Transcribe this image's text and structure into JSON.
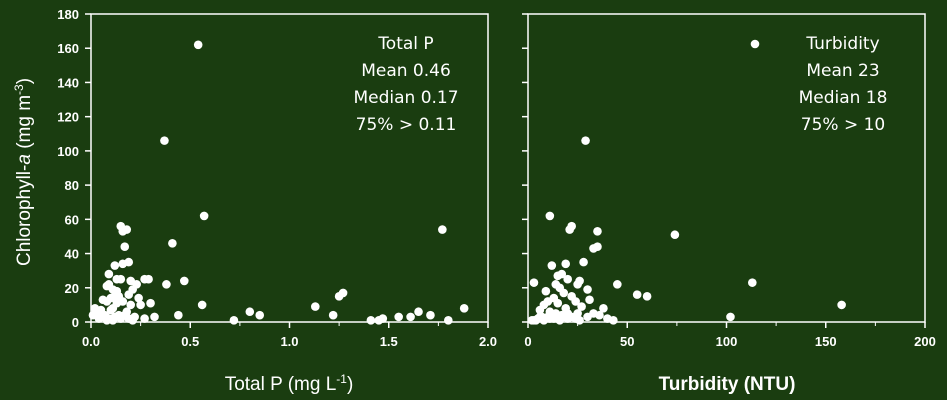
{
  "colors": {
    "background": "#1a3d10",
    "points": "#ffffff",
    "axes": "#ffffff"
  },
  "y_label": {
    "main": "Chlorophyll-",
    "italic": "a",
    "unit": " (mg m",
    "sup": "-3",
    "close": ")"
  },
  "chart_data": [
    {
      "type": "scatter",
      "xlabel": {
        "main": "Total P (mg L",
        "sup": "-1",
        "close": ")"
      },
      "xlim": [
        0,
        2.0
      ],
      "ylim": [
        0,
        180
      ],
      "xticks": [
        "0.0",
        "0.5",
        "1.0",
        "1.5",
        "2.0"
      ],
      "yticks": [
        "0",
        "20",
        "40",
        "60",
        "80",
        "100",
        "120",
        "140",
        "160",
        "180"
      ],
      "grid": false,
      "annotation": [
        "Total P",
        "Mean 0.46",
        "Median 0.17",
        "75% > 0.11"
      ],
      "x": [
        0.54,
        0.37,
        0.57,
        1.77,
        0.41,
        0.15,
        0.16,
        0.18,
        0.17,
        0.19,
        0.16,
        0.12,
        0.09,
        0.13,
        0.15,
        0.2,
        0.27,
        0.29,
        0.23,
        0.09,
        0.47,
        0.08,
        0.38,
        0.11,
        0.21,
        0.13,
        0.19,
        0.12,
        0.1,
        0.14,
        0.24,
        0.06,
        0.16,
        0.08,
        0.3,
        0.13,
        0.25,
        0.2,
        0.02,
        0.11,
        0.05,
        0.1,
        0.18,
        0.03,
        0.01,
        0.07,
        0.14,
        0.17,
        0.22,
        0.06,
        0.12,
        0.04,
        0.09,
        0.27,
        0.15,
        0.21,
        0.11,
        0.32,
        0.19,
        0.08,
        0.44,
        0.56,
        0.8,
        0.72,
        0.85,
        1.13,
        1.27,
        1.25,
        1.22,
        1.41,
        1.45,
        1.47,
        1.55,
        1.65,
        1.61,
        1.71,
        1.8,
        1.88
      ],
      "y": [
        162,
        106,
        62,
        54,
        46,
        56,
        53,
        54,
        44,
        35,
        34,
        33,
        28,
        25,
        25,
        24,
        25,
        25,
        22,
        22,
        24,
        21,
        22,
        19,
        19,
        18,
        16,
        15,
        14,
        15,
        14,
        13,
        12,
        12,
        11,
        11,
        10,
        10,
        8,
        8,
        7,
        7,
        6,
        5,
        4,
        4,
        4,
        4,
        3,
        3,
        3,
        2,
        2,
        2,
        2,
        1,
        1,
        3,
        2,
        1,
        4,
        10,
        6,
        1,
        4,
        9,
        17,
        15,
        4,
        1,
        1,
        2,
        3,
        6,
        3,
        4,
        1,
        8
      ]
    },
    {
      "type": "scatter",
      "xlabel": {
        "main": "Turbidity (NTU)"
      },
      "xlim": [
        0,
        200
      ],
      "ylim": [
        0,
        180
      ],
      "xticks": [
        "0",
        "50",
        "100",
        "150",
        "200"
      ],
      "yticks": [],
      "grid": false,
      "legend": {
        "label": "Turbidity",
        "position": "top-right"
      },
      "annotation": [
        "Turbidity",
        "Mean 23",
        "Median 18",
        "75% > 10"
      ],
      "x": [
        29,
        74,
        113,
        158,
        102,
        35,
        3,
        11,
        22,
        21,
        35,
        33,
        28,
        19,
        12,
        17,
        15,
        20,
        26,
        60,
        55,
        25,
        14,
        16,
        30,
        9,
        18,
        22,
        13,
        45,
        24,
        10,
        31,
        15,
        8,
        27,
        19,
        38,
        6,
        11,
        25,
        20,
        14,
        33,
        17,
        12,
        7,
        22,
        30,
        18,
        5,
        9,
        4,
        26,
        13,
        16,
        2,
        11,
        8,
        20,
        36,
        40,
        43,
        3,
        24,
        15,
        6,
        10
      ],
      "y": [
        106,
        51,
        23,
        10,
        3,
        53,
        23,
        62,
        56,
        54,
        44,
        43,
        35,
        34,
        33,
        28,
        27,
        25,
        24,
        15,
        16,
        22,
        22,
        20,
        19,
        18,
        17,
        15,
        14,
        22,
        12,
        12,
        13,
        11,
        10,
        9,
        8,
        8,
        7,
        6,
        5,
        5,
        5,
        5,
        4,
        4,
        3,
        3,
        3,
        3,
        2,
        2,
        1,
        1,
        2,
        1,
        1,
        2,
        1,
        2,
        4,
        2,
        1,
        1,
        2,
        2,
        3,
        3
      ]
    }
  ]
}
